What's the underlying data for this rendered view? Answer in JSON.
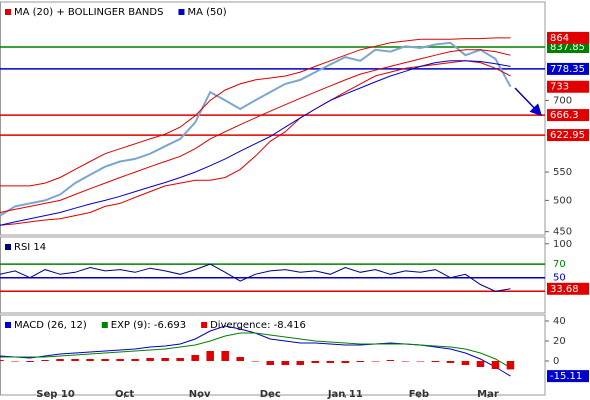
{
  "chart_data": [
    {
      "type": "line",
      "log_scale": true,
      "ylim": [
        445,
        975
      ],
      "yticks": [
        450,
        500,
        550,
        700
      ],
      "xlim": [
        0,
        36.3
      ],
      "legend": "top-left",
      "series": [
        {
          "color": "#7ba6d0",
          "width": 2,
          "end_label": true,
          "label_color": "#e00000",
          "values": [
            475,
            490,
            495,
            500,
            510,
            530,
            545,
            560,
            570,
            575,
            585,
            600,
            615,
            650,
            720,
            700,
            680,
            700,
            720,
            740,
            750,
            770,
            790,
            810,
            800,
            830,
            825,
            840,
            835,
            845,
            850,
            815,
            830,
            805,
            733
          ]
        },
        {
          "name": "MA (20) + BOLLINGER BANDS",
          "color": "#e00000",
          "width": 1,
          "values": [
            480,
            485,
            490,
            495,
            500,
            510,
            520,
            530,
            540,
            550,
            560,
            570,
            580,
            595,
            615,
            630,
            645,
            660,
            675,
            690,
            705,
            720,
            735,
            750,
            765,
            775,
            785,
            795,
            805,
            815,
            825,
            830,
            830,
            825,
            815
          ]
        },
        {
          "color": "#e00000",
          "width": 1,
          "end_label": true,
          "label_color": "#e00000",
          "values": [
            525,
            525,
            525,
            530,
            540,
            555,
            570,
            585,
            595,
            605,
            615,
            625,
            640,
            665,
            700,
            725,
            740,
            750,
            755,
            760,
            770,
            785,
            800,
            815,
            830,
            840,
            850,
            855,
            860,
            860,
            860,
            862,
            862,
            864,
            864
          ]
        },
        {
          "color": "#e00000",
          "width": 1,
          "values": [
            460,
            462,
            465,
            468,
            470,
            475,
            480,
            490,
            495,
            505,
            515,
            525,
            530,
            535,
            535,
            540,
            555,
            580,
            610,
            630,
            660,
            680,
            700,
            720,
            740,
            760,
            770,
            780,
            785,
            790,
            795,
            800,
            795,
            780,
            760
          ]
        },
        {
          "name": "MA (50)",
          "color": "#0000cc",
          "width": 1,
          "values": [
            460,
            465,
            470,
            475,
            480,
            487,
            494,
            500,
            507,
            515,
            523,
            531,
            540,
            550,
            562,
            575,
            590,
            605,
            620,
            640,
            660,
            680,
            700,
            715,
            730,
            745,
            760,
            772,
            785,
            795,
            800,
            800,
            798,
            792,
            785
          ]
        }
      ],
      "levels": [
        {
          "value": 837.85,
          "color": "#008000",
          "style": "box"
        },
        {
          "value": 778.35,
          "color": "#0000cc",
          "style": "box"
        },
        {
          "value": 666.3,
          "color": "#e00000",
          "style": "box"
        },
        {
          "value": 622.95,
          "color": "#e00000",
          "style": "box"
        }
      ]
    },
    {
      "type": "line",
      "title": "RSI 14",
      "title_color": "#000080",
      "ylim": [
        -2,
        110
      ],
      "yticks": [
        100
      ],
      "xlim": [
        0,
        36.3
      ],
      "series": [
        {
          "color": "#000080",
          "width": 1,
          "end_label": true,
          "label_color": "#e00000",
          "values": [
            55,
            60,
            50,
            62,
            55,
            58,
            65,
            60,
            62,
            58,
            64,
            60,
            55,
            62,
            70,
            58,
            45,
            55,
            60,
            62,
            58,
            60,
            55,
            65,
            58,
            62,
            55,
            60,
            58,
            62,
            50,
            55,
            40,
            30,
            33.68
          ]
        }
      ],
      "levels": [
        {
          "value": 70,
          "color": "#008000",
          "style": "text"
        },
        {
          "value": 50,
          "color": "#0000cc",
          "style": "text"
        },
        {
          "value": 30,
          "color": "#e00000",
          "style": "none"
        }
      ]
    },
    {
      "type": "line",
      "ylim": [
        -34,
        46
      ],
      "yticks": [
        40,
        20,
        0
      ],
      "xlim": [
        0,
        36.3
      ],
      "xticks": [
        {
          "value": 3.7,
          "label": "Sep 10"
        },
        {
          "value": 8.3,
          "label": "Oct"
        },
        {
          "value": 13.3,
          "label": "Nov"
        },
        {
          "value": 18,
          "label": "Dec"
        },
        {
          "value": 23,
          "label": "Jan 11"
        },
        {
          "value": 27.9,
          "label": "Feb"
        },
        {
          "value": 32.5,
          "label": "Mar"
        }
      ],
      "series": [
        {
          "name": "MACD (26, 12)",
          "color": "#0000cc",
          "width": 1,
          "end_label": true,
          "label_color": "#0000cc",
          "values": [
            5,
            4,
            3,
            5,
            7,
            8,
            9,
            10,
            11,
            12,
            14,
            15,
            17,
            22,
            30,
            35,
            32,
            28,
            22,
            20,
            18,
            18,
            17,
            16,
            16,
            17,
            18,
            17,
            16,
            14,
            12,
            8,
            2,
            -6,
            -15.11
          ]
        },
        {
          "name": "EXP (9): -6.693",
          "color": "#008000",
          "width": 1,
          "values": [
            4,
            4,
            4,
            4,
            5,
            6,
            7,
            8,
            9,
            10,
            11,
            12,
            14,
            16,
            20,
            25,
            28,
            28,
            26,
            24,
            22,
            20,
            19,
            18,
            17,
            17,
            17,
            17,
            16,
            15,
            14,
            12,
            8,
            2,
            -6.693
          ]
        },
        {
          "name": "Divergence: -8.416",
          "color": "#e00000",
          "type": "bar",
          "values": [
            1,
            0,
            -1,
            1,
            2,
            2,
            2,
            2,
            2,
            2,
            3,
            3,
            3,
            6,
            10,
            10,
            4,
            0,
            -4,
            -4,
            -4,
            -2,
            -2,
            -2,
            -1,
            0,
            1,
            0,
            0,
            -1,
            -2,
            -4,
            -6,
            -8,
            -8.416
          ]
        }
      ]
    }
  ]
}
